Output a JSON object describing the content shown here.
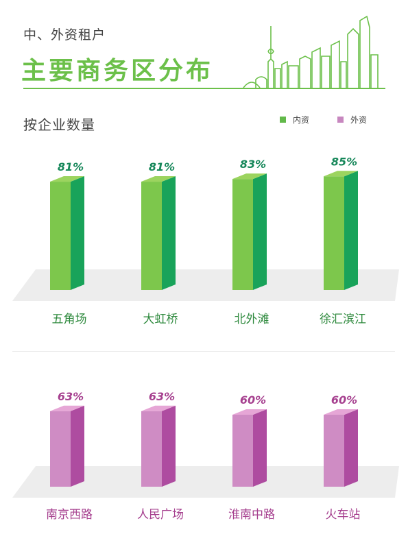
{
  "header": {
    "subtitle": "中、外资租户",
    "title": "主要商务区分布"
  },
  "section": {
    "title": "按企业数量"
  },
  "legend": {
    "domestic": {
      "label": "内资",
      "color": "#62b94a"
    },
    "foreign": {
      "label": "外资",
      "color": "#c787bf"
    }
  },
  "chart_data": [
    {
      "type": "bar",
      "categories": [
        "五角场",
        "大虹桥",
        "北外滩",
        "徐汇滨江"
      ],
      "series": [
        {
          "name": "内资",
          "values": [
            81,
            81,
            83,
            85
          ],
          "labels": [
            "81%",
            "81%",
            "83%",
            "85%"
          ]
        }
      ],
      "label_color": "#16875a",
      "colors": {
        "front": "#7dc74c",
        "side": "#19a35a",
        "top": "#9cd45f"
      },
      "category_color": "#2f8a3e"
    },
    {
      "type": "bar",
      "categories": [
        "南京西路",
        "人民广场",
        "淮南中路",
        "火车站"
      ],
      "series": [
        {
          "name": "外资",
          "values": [
            63,
            63,
            60,
            60
          ],
          "labels": [
            "63%",
            "63%",
            "60%",
            "60%"
          ]
        }
      ],
      "label_color": "#a6408f",
      "colors": {
        "front": "#cf8cc4",
        "side": "#ae4ca0",
        "top": "#e6a6d6"
      },
      "category_color": "#a6408f"
    }
  ]
}
